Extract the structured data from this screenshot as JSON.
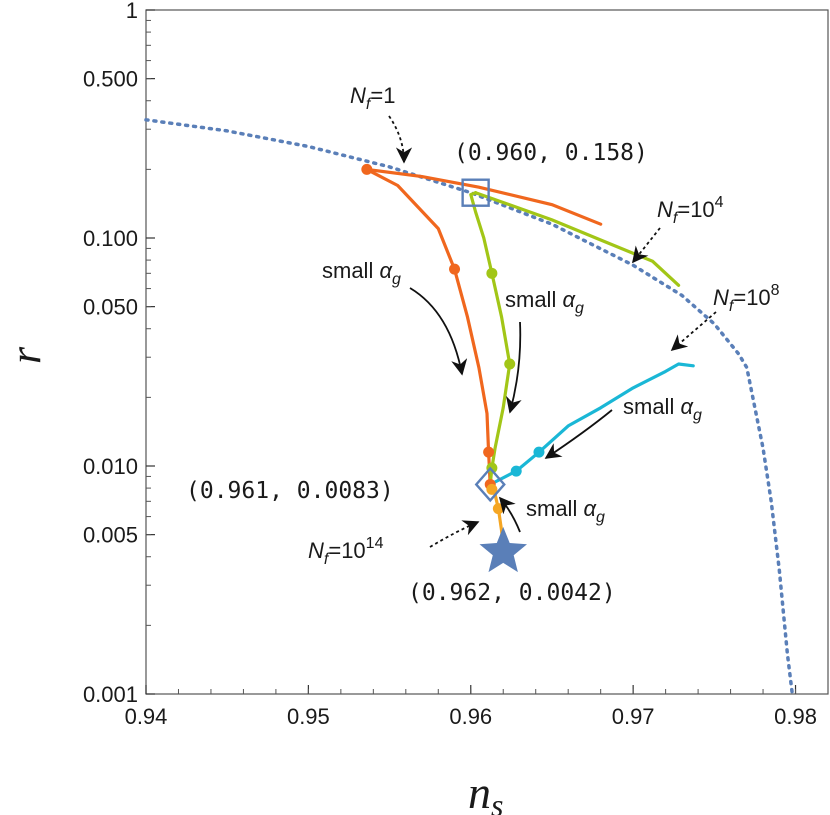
{
  "chart_data": {
    "type": "line",
    "xlabel": "n",
    "xlabel_sub": "s",
    "ylabel": "r",
    "xlim": [
      0.94,
      0.982
    ],
    "ylim": [
      0.001,
      1
    ],
    "yscale": "log",
    "x_ticks": [
      "0.94",
      "0.95",
      "0.96",
      "0.97",
      "0.98"
    ],
    "y_ticks": [
      "0.001",
      "0.005",
      "0.010",
      "0.050",
      "0.100",
      "0.500",
      "1"
    ],
    "grid": false,
    "legend": "none",
    "series": [
      {
        "key": "boundary",
        "style": "dotted",
        "color": "#5a7fb8",
        "points": [
          [
            0.94,
            0.33
          ],
          [
            0.945,
            0.295
          ],
          [
            0.95,
            0.252
          ],
          [
            0.955,
            0.205
          ],
          [
            0.96,
            0.158
          ],
          [
            0.965,
            0.115
          ],
          [
            0.97,
            0.076
          ],
          [
            0.973,
            0.056
          ],
          [
            0.975,
            0.042
          ],
          [
            0.9765,
            0.031
          ],
          [
            0.977,
            0.027
          ],
          [
            0.9775,
            0.018
          ],
          [
            0.978,
            0.012
          ],
          [
            0.9785,
            0.007
          ],
          [
            0.979,
            0.0035
          ],
          [
            0.9795,
            0.0015
          ],
          [
            0.9798,
            0.001
          ]
        ]
      },
      {
        "key": "Nf_1",
        "style": "solid",
        "color": "#f0671e",
        "points": [
          [
            0.9536,
            0.2
          ],
          [
            0.9555,
            0.17
          ],
          [
            0.958,
            0.11
          ],
          [
            0.959,
            0.073
          ],
          [
            0.9598,
            0.045
          ],
          [
            0.9605,
            0.027
          ],
          [
            0.961,
            0.017
          ],
          [
            0.9611,
            0.0115
          ],
          [
            0.9612,
            0.0083
          ]
        ],
        "markers": [
          [
            0.9536,
            0.2
          ],
          [
            0.959,
            0.073
          ],
          [
            0.9611,
            0.0115
          ],
          [
            0.9612,
            0.0083
          ]
        ],
        "upper_branch": [
          [
            0.9536,
            0.2
          ],
          [
            0.957,
            0.186
          ],
          [
            0.9605,
            0.167
          ],
          [
            0.965,
            0.14
          ],
          [
            0.968,
            0.115
          ]
        ]
      },
      {
        "key": "Nf_1e4",
        "style": "solid",
        "color": "#a2c617",
        "points": [
          [
            0.9603,
            0.158
          ],
          [
            0.96,
            0.155
          ],
          [
            0.9603,
            0.13
          ],
          [
            0.9608,
            0.1
          ],
          [
            0.9613,
            0.07
          ],
          [
            0.9619,
            0.045
          ],
          [
            0.9624,
            0.028
          ],
          [
            0.962,
            0.018
          ],
          [
            0.9615,
            0.012
          ],
          [
            0.9613,
            0.0098
          ],
          [
            0.9612,
            0.0083
          ]
        ],
        "markers": [
          [
            0.9613,
            0.07
          ],
          [
            0.9624,
            0.028
          ],
          [
            0.9613,
            0.0098
          ]
        ],
        "upper_branch": [
          [
            0.9603,
            0.158
          ],
          [
            0.965,
            0.12
          ],
          [
            0.968,
            0.098
          ],
          [
            0.9712,
            0.079
          ],
          [
            0.9728,
            0.062
          ]
        ]
      },
      {
        "key": "Nf_1e8",
        "style": "solid",
        "color": "#1ab7d6",
        "points": [
          [
            0.9612,
            0.0083
          ],
          [
            0.9628,
            0.0095
          ],
          [
            0.9642,
            0.0115
          ],
          [
            0.966,
            0.015
          ],
          [
            0.968,
            0.018
          ],
          [
            0.97,
            0.022
          ],
          [
            0.972,
            0.026
          ],
          [
            0.9728,
            0.028
          ],
          [
            0.9737,
            0.0275
          ]
        ],
        "markers": [
          [
            0.9628,
            0.0095
          ],
          [
            0.9642,
            0.0115
          ]
        ]
      },
      {
        "key": "Nf_1e14",
        "style": "solid",
        "color": "#f5a623",
        "points": [
          [
            0.9612,
            0.0083
          ],
          [
            0.9615,
            0.0075
          ],
          [
            0.9617,
            0.0065
          ],
          [
            0.9619,
            0.0052
          ],
          [
            0.962,
            0.0044
          ]
        ],
        "markers": [
          [
            0.9613,
            0.0079
          ],
          [
            0.9617,
            0.0065
          ]
        ]
      }
    ],
    "special_points": [
      {
        "key": "square",
        "x": 0.9603,
        "y": 0.158,
        "label": "(0.960, 0.158)"
      },
      {
        "key": "diamond",
        "x": 0.9612,
        "y": 0.0083,
        "label": "(0.961, 0.0083)"
      },
      {
        "key": "star",
        "x": 0.962,
        "y": 0.0042,
        "label": "(0.962, 0.0042)"
      }
    ],
    "annotations": [
      {
        "key": "nf1",
        "base": "N",
        "sub": "f",
        "eq": "=1",
        "sup": ""
      },
      {
        "key": "nf4",
        "base": "N",
        "sub": "f",
        "eq": "=10",
        "sup": "4"
      },
      {
        "key": "nf8",
        "base": "N",
        "sub": "f",
        "eq": "=10",
        "sup": "8"
      },
      {
        "key": "nf14",
        "base": "N",
        "sub": "f",
        "eq": "=10",
        "sup": "14"
      },
      {
        "key": "sa1",
        "text": "small ",
        "greek": "α",
        "sub": "g"
      },
      {
        "key": "sa2",
        "text": "small ",
        "greek": "α",
        "sub": "g"
      },
      {
        "key": "sa3",
        "text": "small ",
        "greek": "α",
        "sub": "g"
      },
      {
        "key": "sa4",
        "text": "small ",
        "greek": "α",
        "sub": "g"
      }
    ]
  }
}
